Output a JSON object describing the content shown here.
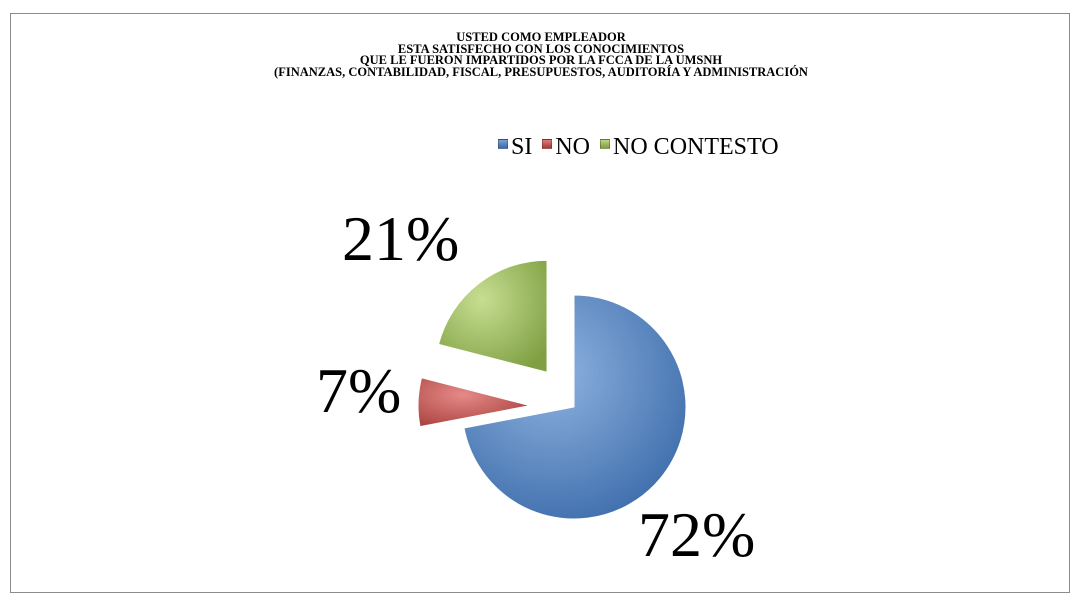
{
  "chart_data": {
    "type": "pie",
    "title_lines": [
      "USTED COMO EMPLEADOR",
      "ESTA SATISFECHO CON LOS CONOCIMIENTOS",
      "QUE LE FUERON IMPARTIDOS POR LA FCCA DE LA UMSNH",
      "(FINANZAS, CONTABILIDAD, FISCAL, PRESUPUESTOS, AUDITORÍA Y ADMINISTRACIÓN"
    ],
    "legend_position": "top",
    "slices": [
      {
        "label": "SI",
        "value": 72,
        "display": "72%",
        "color": "#4f81bd"
      },
      {
        "label": "NO",
        "value": 7,
        "display": "7%",
        "color": "#c0504d"
      },
      {
        "label": "NO CONTESTO",
        "value": 21,
        "display": "21%",
        "color": "#9bbb59"
      }
    ]
  }
}
